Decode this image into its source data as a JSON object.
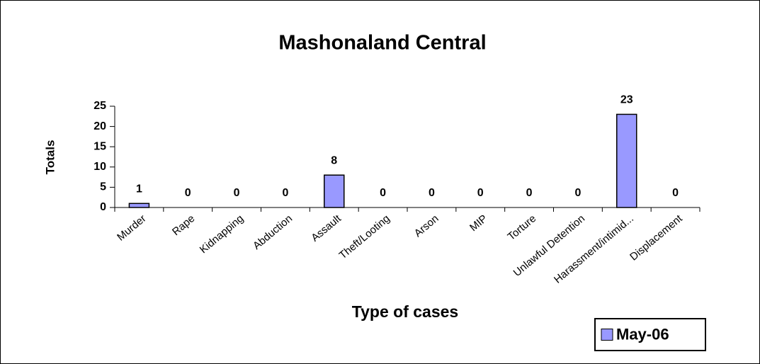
{
  "chart_data": {
    "type": "bar",
    "title": "Mashonaland Central",
    "y_label": "Totals",
    "x_label": "Type of cases",
    "categories": [
      "Murder",
      "Rape",
      "Kidnapping",
      "Abduction",
      "Assault",
      "Theft/Looting",
      "Arson",
      "MIP",
      "Torture",
      "Unlawful Detention",
      "Harassment/intimid...",
      "Displacement"
    ],
    "series": [
      {
        "name": "May-06",
        "color": "#9999ff",
        "values": [
          1,
          0,
          0,
          0,
          8,
          0,
          0,
          0,
          0,
          0,
          23,
          0
        ]
      }
    ],
    "ylim": [
      0,
      25
    ],
    "yticks": [
      0,
      5,
      10,
      15,
      20,
      25
    ],
    "legend": "bottom-right"
  }
}
